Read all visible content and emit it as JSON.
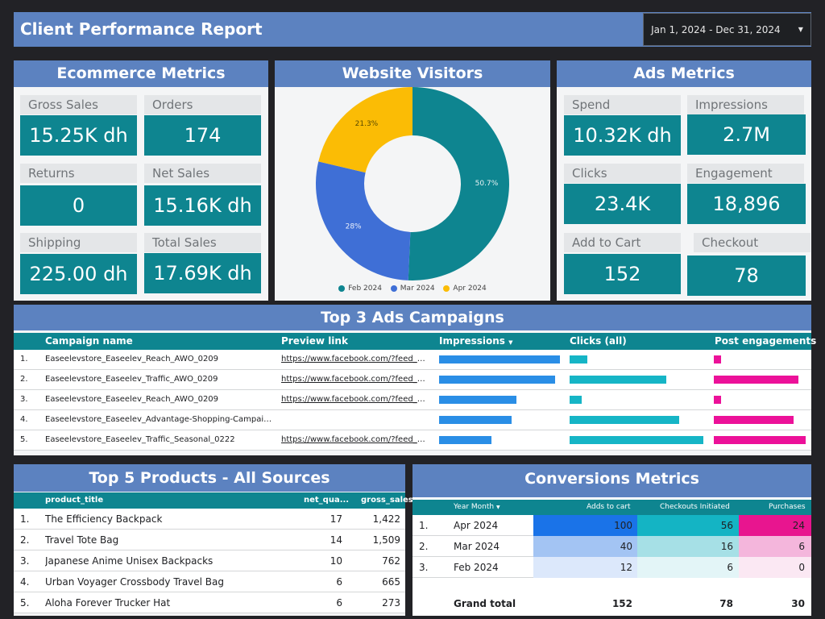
{
  "header": {
    "title": "Client Performance Report",
    "date_range": "Jan 1, 2024 - Dec 31, 2024"
  },
  "ecommerce": {
    "title": "Ecommerce Metrics",
    "metrics": [
      {
        "label": "Gross Sales",
        "value": "15.25K dh"
      },
      {
        "label": "Orders",
        "value": "174"
      },
      {
        "label": "Returns",
        "value": "0"
      },
      {
        "label": "Net Sales",
        "value": "15.16K dh"
      },
      {
        "label": "Shipping",
        "value": "225.00 dh"
      },
      {
        "label": "Total Sales",
        "value": "17.69K dh"
      }
    ]
  },
  "visitors": {
    "title": "Website Visitors",
    "slice_labels": [
      "50.7%",
      "28%",
      "21.3%"
    ]
  },
  "ads": {
    "title": "Ads Metrics",
    "metrics": [
      {
        "label": "Spend",
        "value": "10.32K dh"
      },
      {
        "label": "Impressions",
        "value": "2.7M"
      },
      {
        "label": "Clicks",
        "value": "23.4K"
      },
      {
        "label": "Engagement",
        "value": "18,896"
      },
      {
        "label": "Add to Cart",
        "value": "152"
      },
      {
        "label": "Checkout",
        "value": "78"
      }
    ]
  },
  "campaigns": {
    "title": "Top 3 Ads Campaigns",
    "columns": [
      "Campaign name",
      "Preview link",
      "Impressions",
      "Clicks (all)",
      "Post engagements"
    ],
    "rows": [
      {
        "num": "1.",
        "name": "Easeelevstore_Easeelev_Reach_AWO_0209",
        "link": "https://www.facebook.com/?feed_de...",
        "impr": 1.0,
        "clicks": 0.13,
        "eng": 0.08
      },
      {
        "num": "2.",
        "name": "Easeelevstore_Easeelev_Traffic_AWO_0209",
        "link": "https://www.facebook.com/?feed_de...",
        "impr": 0.96,
        "clicks": 0.72,
        "eng": 0.92
      },
      {
        "num": "3.",
        "name": "Easeelevstore_Easeelev_Reach_AWO_0209",
        "link": "https://www.facebook.com/?feed_de...",
        "impr": 0.64,
        "clicks": 0.09,
        "eng": 0.08
      },
      {
        "num": "4.",
        "name": "Easeelevstore_Easeelev_Advantage-Shopping-Campaign_Sea...",
        "link": "",
        "impr": 0.6,
        "clicks": 0.82,
        "eng": 0.87
      },
      {
        "num": "5.",
        "name": "Easeelevstore_Easeelev_Traffic_Seasonal_0222",
        "link": "https://www.facebook.com/?feed_de...",
        "impr": 0.43,
        "clicks": 1.0,
        "eng": 1.0
      }
    ]
  },
  "products": {
    "title": "Top 5 Products - All Sources",
    "columns": [
      "product_title",
      "net_qua...",
      "gross_sales"
    ],
    "rows": [
      {
        "num": "1.",
        "title": "The Efficiency Backpack",
        "qty": "17",
        "sales": "1,422"
      },
      {
        "num": "2.",
        "title": "Travel Tote Bag",
        "qty": "14",
        "sales": "1,509"
      },
      {
        "num": "3.",
        "title": "Japanese Anime Unisex Backpacks",
        "qty": "10",
        "sales": "762"
      },
      {
        "num": "4.",
        "title": "Urban Voyager Crossbody Travel Bag",
        "qty": "6",
        "sales": "665"
      },
      {
        "num": "5.",
        "title": "Aloha Forever Trucker Hat",
        "qty": "6",
        "sales": "273"
      }
    ]
  },
  "conversions": {
    "title": "Conversions Metrics",
    "columns": [
      "Year Month",
      "Adds to cart",
      "Checkouts Initiated",
      "Purchases"
    ],
    "rows": [
      {
        "num": "1.",
        "month": "Apr 2024",
        "adds": "100",
        "checkouts": "56",
        "purchases": "24"
      },
      {
        "num": "2.",
        "month": "Mar 2024",
        "adds": "40",
        "checkouts": "16",
        "purchases": "6"
      },
      {
        "num": "3.",
        "month": "Feb 2024",
        "adds": "12",
        "checkouts": "6",
        "purchases": "0"
      }
    ],
    "total": {
      "label": "Grand total",
      "adds": "152",
      "checkouts": "78",
      "purchases": "30"
    }
  },
  "chart_data": {
    "type": "pie",
    "categories": [
      "Feb 2024",
      "Mar 2024",
      "Apr 2024"
    ],
    "values": [
      50.7,
      28,
      21.3
    ],
    "colors": [
      "#0e8590",
      "#3f6fd6",
      "#fbbc05"
    ],
    "title": "Website Visitors",
    "legend": "bottom"
  },
  "colors": {
    "header": "#5c82c0",
    "teal": "#0e8590",
    "bar_impressions": "#2a8ee6",
    "bar_clicks": "#16b5c6",
    "bar_engagement": "#ec1199"
  }
}
